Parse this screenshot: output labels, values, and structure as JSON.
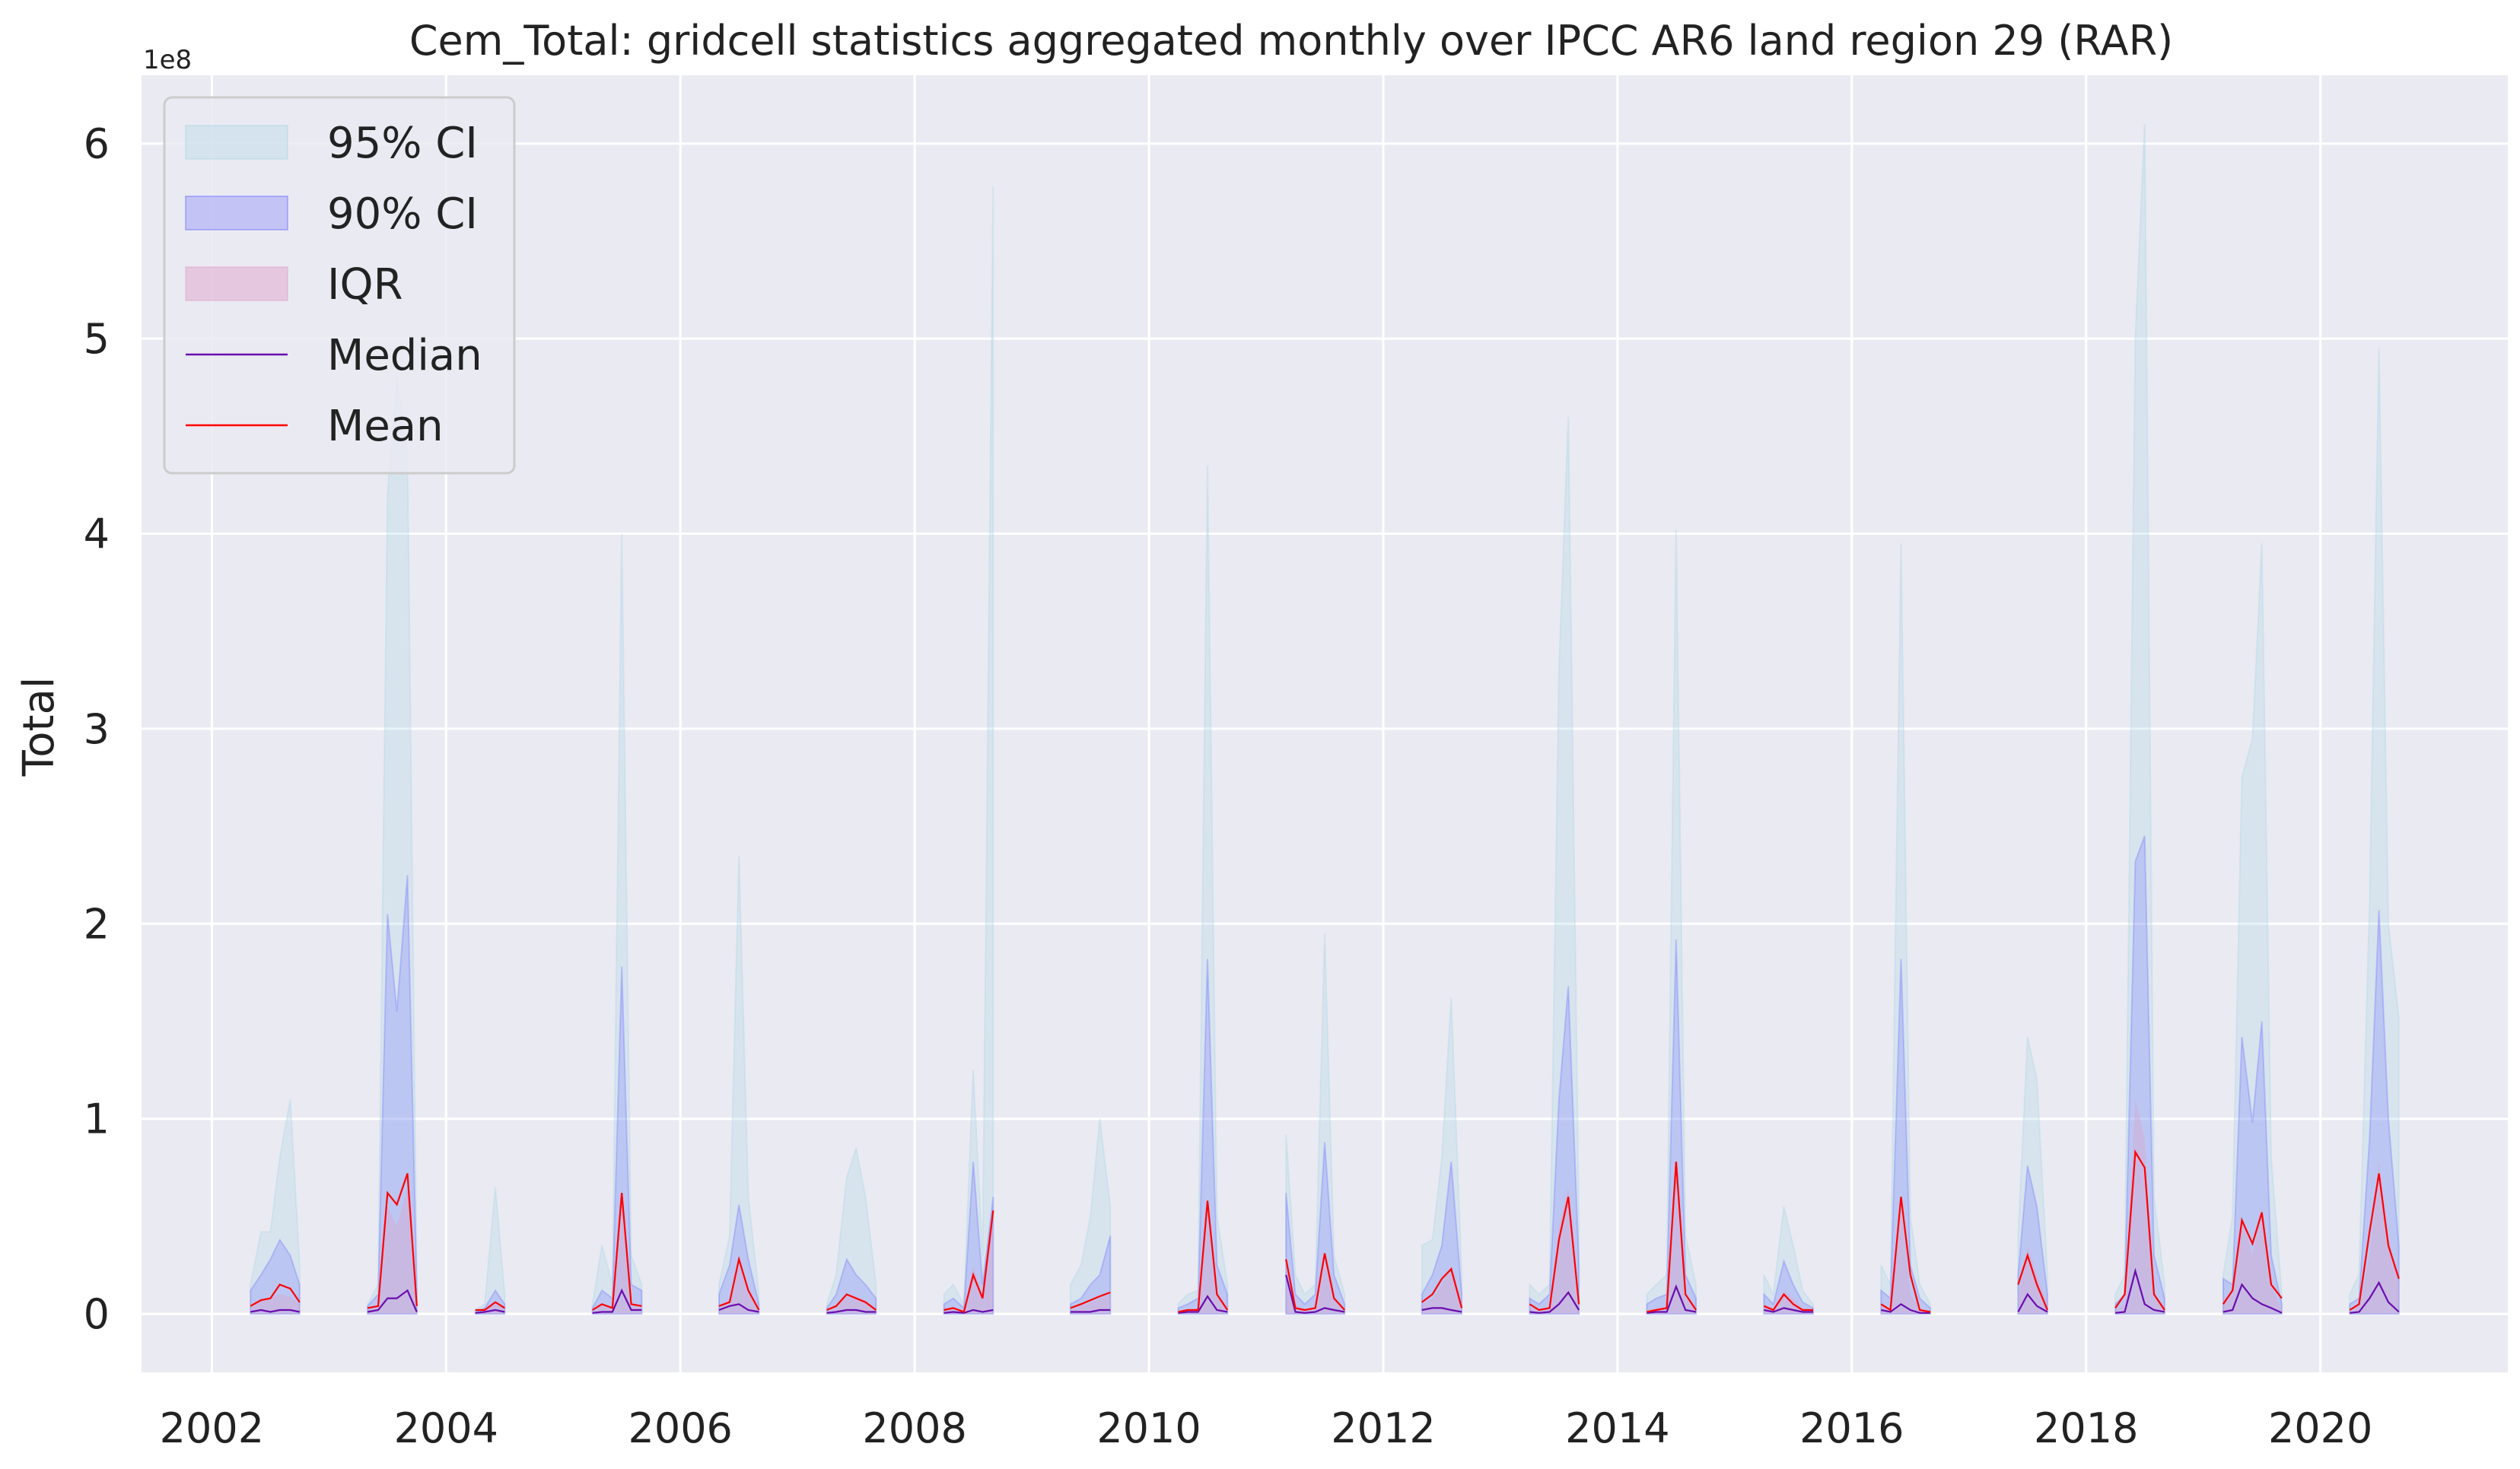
{
  "chart_data": {
    "type": "area",
    "title": "Cem_Total: gridcell statistics aggregated monthly over IPCC AR6 land region 29 (RAR)",
    "xlabel": "",
    "ylabel": "Total",
    "y_offset_label": "1e8",
    "y_scale_multiplier": 100000000,
    "xlim": [
      2001.4,
      2021.6
    ],
    "ylim": [
      -0.3,
      6.35
    ],
    "x_ticks": [
      2002,
      2004,
      2006,
      2008,
      2010,
      2012,
      2014,
      2016,
      2018,
      2020
    ],
    "x_tick_labels": [
      "2002",
      "2004",
      "2006",
      "2008",
      "2010",
      "2012",
      "2014",
      "2016",
      "2018",
      "2020"
    ],
    "y_ticks": [
      0,
      1,
      2,
      3,
      4,
      5,
      6
    ],
    "y_tick_labels": [
      "0",
      "1",
      "2",
      "3",
      "4",
      "5",
      "6"
    ],
    "grid": true,
    "legend_position": "top-left",
    "colors": {
      "plot_background": "#eaeaf2",
      "grid": "#ffffff",
      "ci95": "#add8e6",
      "ci90": "#6a6aff",
      "iqr": "#e0a0c8",
      "median": "#6a0dad",
      "mean": "#ff0000"
    },
    "legend": [
      {
        "label": "95% CI",
        "kind": "fill",
        "key": "ci95"
      },
      {
        "label": "90% CI",
        "kind": "fill",
        "key": "ci90"
      },
      {
        "label": "IQR",
        "kind": "fill",
        "key": "iqr"
      },
      {
        "label": "Median",
        "kind": "line",
        "key": "median"
      },
      {
        "label": "Mean",
        "kind": "line",
        "key": "mean"
      }
    ],
    "segments": [
      {
        "x": [
          2002.33,
          2002.42,
          2002.5,
          2002.58,
          2002.67,
          2002.75
        ],
        "ci95": [
          0.15,
          0.42,
          0.42,
          0.8,
          1.1,
          0.25
        ],
        "ci90": [
          0.12,
          0.2,
          0.28,
          0.38,
          0.3,
          0.15
        ],
        "iqr_hi": [
          0.05,
          0.07,
          0.08,
          0.1,
          0.09,
          0.05
        ],
        "iqr_lo": [
          0.0,
          0.0,
          0.0,
          0.0,
          0.0,
          0.0
        ],
        "median": [
          0.01,
          0.02,
          0.01,
          0.02,
          0.02,
          0.01
        ],
        "mean": [
          0.04,
          0.07,
          0.08,
          0.15,
          0.13,
          0.06
        ]
      },
      {
        "x": [
          2003.33,
          2003.42,
          2003.5,
          2003.58,
          2003.67,
          2003.75
        ],
        "ci95": [
          0.05,
          0.15,
          4.2,
          4.8,
          4.4,
          0.2
        ],
        "ci90": [
          0.04,
          0.1,
          2.05,
          1.55,
          2.25,
          0.12
        ],
        "iqr_hi": [
          0.02,
          0.05,
          0.55,
          0.45,
          0.65,
          0.04
        ],
        "iqr_lo": [
          0.0,
          0.0,
          0.0,
          0.0,
          0.0,
          0.0
        ],
        "median": [
          0.01,
          0.02,
          0.08,
          0.08,
          0.12,
          0.01
        ],
        "mean": [
          0.03,
          0.04,
          0.62,
          0.56,
          0.72,
          0.04
        ]
      },
      {
        "x": [
          2004.25,
          2004.33,
          2004.42,
          2004.5
        ],
        "ci95": [
          0.02,
          0.05,
          0.65,
          0.1
        ],
        "ci90": [
          0.01,
          0.03,
          0.12,
          0.05
        ],
        "iqr_hi": [
          0.01,
          0.02,
          0.05,
          0.02
        ],
        "iqr_lo": [
          0.0,
          0.0,
          0.0,
          0.0
        ],
        "median": [
          0.005,
          0.01,
          0.02,
          0.01
        ],
        "mean": [
          0.02,
          0.02,
          0.06,
          0.03
        ]
      },
      {
        "x": [
          2005.25,
          2005.33,
          2005.42,
          2005.5,
          2005.58,
          2005.67
        ],
        "ci95": [
          0.05,
          0.35,
          0.15,
          4.0,
          0.3,
          0.15
        ],
        "ci90": [
          0.03,
          0.12,
          0.08,
          1.78,
          0.15,
          0.12
        ],
        "iqr_hi": [
          0.01,
          0.05,
          0.03,
          0.6,
          0.05,
          0.04
        ],
        "iqr_lo": [
          0.0,
          0.0,
          0.0,
          0.0,
          0.0,
          0.0
        ],
        "median": [
          0.005,
          0.01,
          0.01,
          0.12,
          0.02,
          0.02
        ],
        "mean": [
          0.02,
          0.05,
          0.03,
          0.62,
          0.05,
          0.04
        ]
      },
      {
        "x": [
          2006.33,
          2006.42,
          2006.5,
          2006.58,
          2006.67
        ],
        "ci95": [
          0.15,
          0.4,
          2.35,
          0.6,
          0.1
        ],
        "ci90": [
          0.1,
          0.25,
          0.56,
          0.28,
          0.05
        ],
        "iqr_hi": [
          0.04,
          0.08,
          0.25,
          0.12,
          0.02
        ],
        "iqr_lo": [
          0.0,
          0.0,
          0.0,
          0.0,
          0.0
        ],
        "median": [
          0.02,
          0.04,
          0.05,
          0.02,
          0.01
        ],
        "mean": [
          0.04,
          0.06,
          0.28,
          0.12,
          0.02
        ]
      },
      {
        "x": [
          2007.25,
          2007.33,
          2007.42,
          2007.5,
          2007.58,
          2007.67
        ],
        "ci95": [
          0.05,
          0.2,
          0.7,
          0.85,
          0.6,
          0.15
        ],
        "ci90": [
          0.03,
          0.1,
          0.28,
          0.2,
          0.15,
          0.08
        ],
        "iqr_hi": [
          0.01,
          0.05,
          0.1,
          0.09,
          0.07,
          0.03
        ],
        "iqr_lo": [
          0.0,
          0.0,
          0.0,
          0.0,
          0.0,
          0.0
        ],
        "median": [
          0.005,
          0.01,
          0.02,
          0.02,
          0.01,
          0.01
        ],
        "mean": [
          0.02,
          0.04,
          0.1,
          0.08,
          0.06,
          0.02
        ]
      },
      {
        "x": [
          2008.25,
          2008.33,
          2008.42,
          2008.5,
          2008.58,
          2008.67
        ],
        "ci95": [
          0.1,
          0.15,
          0.05,
          1.25,
          0.3,
          5.78
        ],
        "ci90": [
          0.05,
          0.08,
          0.03,
          0.78,
          0.15,
          0.6
        ],
        "iqr_hi": [
          0.02,
          0.03,
          0.01,
          0.25,
          0.08,
          0.5
        ],
        "iqr_lo": [
          0.0,
          0.0,
          0.0,
          0.0,
          0.0,
          0.0
        ],
        "median": [
          0.005,
          0.01,
          0.005,
          0.02,
          0.01,
          0.02
        ],
        "mean": [
          0.02,
          0.03,
          0.01,
          0.2,
          0.08,
          0.53
        ]
      },
      {
        "x": [
          2009.33,
          2009.42,
          2009.5,
          2009.58,
          2009.67
        ],
        "ci95": [
          0.15,
          0.25,
          0.5,
          1.0,
          0.55
        ],
        "ci90": [
          0.05,
          0.08,
          0.15,
          0.2,
          0.4
        ],
        "iqr_hi": [
          0.02,
          0.04,
          0.06,
          0.08,
          0.1
        ],
        "iqr_lo": [
          0.0,
          0.0,
          0.0,
          0.0,
          0.0
        ],
        "median": [
          0.01,
          0.01,
          0.01,
          0.02,
          0.02
        ],
        "mean": [
          0.03,
          0.05,
          0.07,
          0.09,
          0.11
        ]
      },
      {
        "x": [
          2010.25,
          2010.33,
          2010.42,
          2010.5,
          2010.58,
          2010.67
        ],
        "ci95": [
          0.05,
          0.1,
          0.12,
          4.35,
          0.5,
          0.15
        ],
        "ci90": [
          0.03,
          0.05,
          0.08,
          1.82,
          0.25,
          0.1
        ],
        "iqr_hi": [
          0.01,
          0.02,
          0.03,
          0.55,
          0.1,
          0.04
        ],
        "iqr_lo": [
          0.0,
          0.0,
          0.0,
          0.0,
          0.0,
          0.0
        ],
        "median": [
          0.005,
          0.01,
          0.01,
          0.09,
          0.02,
          0.01
        ],
        "mean": [
          0.01,
          0.02,
          0.02,
          0.58,
          0.1,
          0.02
        ]
      },
      {
        "x": [
          2011.17,
          2011.25,
          2011.33,
          2011.42,
          2011.5,
          2011.58,
          2011.67
        ],
        "ci95": [
          0.92,
          0.2,
          0.1,
          0.15,
          1.95,
          0.3,
          0.1
        ],
        "ci90": [
          0.62,
          0.1,
          0.05,
          0.1,
          0.88,
          0.2,
          0.05
        ],
        "iqr_hi": [
          0.3,
          0.05,
          0.02,
          0.04,
          0.3,
          0.08,
          0.02
        ],
        "iqr_lo": [
          0.0,
          0.0,
          0.0,
          0.0,
          0.0,
          0.0,
          0.0
        ],
        "median": [
          0.2,
          0.01,
          0.005,
          0.01,
          0.03,
          0.02,
          0.01
        ],
        "mean": [
          0.28,
          0.03,
          0.02,
          0.03,
          0.31,
          0.08,
          0.02
        ]
      },
      {
        "x": [
          2012.33,
          2012.42,
          2012.5,
          2012.58,
          2012.67
        ],
        "ci95": [
          0.35,
          0.38,
          0.8,
          1.62,
          0.2
        ],
        "ci90": [
          0.1,
          0.2,
          0.35,
          0.78,
          0.1
        ],
        "iqr_hi": [
          0.05,
          0.08,
          0.15,
          0.25,
          0.05
        ],
        "iqr_lo": [
          0.0,
          0.0,
          0.0,
          0.0,
          0.0
        ],
        "median": [
          0.02,
          0.03,
          0.03,
          0.02,
          0.01
        ],
        "mean": [
          0.06,
          0.1,
          0.18,
          0.23,
          0.03
        ]
      },
      {
        "x": [
          2013.25,
          2013.33,
          2013.42,
          2013.5,
          2013.58,
          2013.67
        ],
        "ci95": [
          0.15,
          0.1,
          0.15,
          3.3,
          4.6,
          0.5
        ],
        "ci90": [
          0.08,
          0.05,
          0.1,
          1.1,
          1.68,
          0.25
        ],
        "iqr_hi": [
          0.03,
          0.02,
          0.04,
          0.45,
          0.65,
          0.1
        ],
        "iqr_lo": [
          0.0,
          0.0,
          0.0,
          0.0,
          0.0,
          0.0
        ],
        "median": [
          0.01,
          0.005,
          0.01,
          0.05,
          0.11,
          0.02
        ],
        "mean": [
          0.05,
          0.02,
          0.03,
          0.38,
          0.6,
          0.05
        ]
      },
      {
        "x": [
          2014.25,
          2014.33,
          2014.42,
          2014.5,
          2014.58,
          2014.67
        ],
        "ci95": [
          0.1,
          0.15,
          0.2,
          4.02,
          0.4,
          0.15
        ],
        "ci90": [
          0.05,
          0.08,
          0.1,
          1.92,
          0.2,
          0.08
        ],
        "iqr_hi": [
          0.02,
          0.03,
          0.04,
          0.8,
          0.08,
          0.03
        ],
        "iqr_lo": [
          0.0,
          0.0,
          0.0,
          0.0,
          0.0,
          0.0
        ],
        "median": [
          0.005,
          0.01,
          0.01,
          0.14,
          0.02,
          0.01
        ],
        "mean": [
          0.01,
          0.02,
          0.03,
          0.78,
          0.1,
          0.02
        ]
      },
      {
        "x": [
          2015.25,
          2015.33,
          2015.42,
          2015.5,
          2015.58,
          2015.67
        ],
        "ci95": [
          0.2,
          0.1,
          0.55,
          0.35,
          0.12,
          0.05
        ],
        "ci90": [
          0.1,
          0.05,
          0.27,
          0.15,
          0.06,
          0.03
        ],
        "iqr_hi": [
          0.05,
          0.03,
          0.12,
          0.08,
          0.03,
          0.02
        ],
        "iqr_lo": [
          0.0,
          0.0,
          0.0,
          0.0,
          0.0,
          0.0
        ],
        "median": [
          0.02,
          0.01,
          0.03,
          0.02,
          0.01,
          0.01
        ],
        "mean": [
          0.04,
          0.02,
          0.1,
          0.05,
          0.02,
          0.02
        ]
      },
      {
        "x": [
          2016.25,
          2016.33,
          2016.42,
          2016.5,
          2016.58,
          2016.67
        ],
        "ci95": [
          0.25,
          0.15,
          3.95,
          0.5,
          0.15,
          0.05
        ],
        "ci90": [
          0.12,
          0.08,
          1.82,
          0.25,
          0.08,
          0.03
        ],
        "iqr_hi": [
          0.05,
          0.03,
          0.6,
          0.1,
          0.03,
          0.01
        ],
        "iqr_lo": [
          0.0,
          0.0,
          0.0,
          0.0,
          0.0,
          0.0
        ],
        "median": [
          0.02,
          0.01,
          0.05,
          0.02,
          0.005,
          0.005
        ],
        "mean": [
          0.05,
          0.02,
          0.6,
          0.2,
          0.02,
          0.01
        ]
      },
      {
        "x": [
          2017.42,
          2017.5,
          2017.58,
          2017.67
        ],
        "ci95": [
          0.4,
          1.42,
          1.2,
          0.2
        ],
        "ci90": [
          0.2,
          0.76,
          0.55,
          0.1
        ],
        "iqr_hi": [
          0.08,
          0.35,
          0.2,
          0.05
        ],
        "iqr_lo": [
          0.0,
          0.0,
          0.0,
          0.0
        ],
        "median": [
          0.01,
          0.1,
          0.04,
          0.01
        ],
        "mean": [
          0.15,
          0.3,
          0.15,
          0.02
        ]
      },
      {
        "x": [
          2018.25,
          2018.33,
          2018.42,
          2018.5,
          2018.58,
          2018.67
        ],
        "ci95": [
          0.1,
          0.2,
          5.0,
          6.1,
          0.6,
          0.15
        ],
        "ci90": [
          0.05,
          0.1,
          2.32,
          2.45,
          0.3,
          0.08
        ],
        "iqr_hi": [
          0.02,
          0.05,
          1.1,
          0.9,
          0.1,
          0.03
        ],
        "iqr_lo": [
          0.0,
          0.0,
          0.0,
          0.0,
          0.0,
          0.0
        ],
        "median": [
          0.005,
          0.01,
          0.22,
          0.05,
          0.02,
          0.01
        ],
        "mean": [
          0.03,
          0.1,
          0.83,
          0.75,
          0.1,
          0.02
        ]
      },
      {
        "x": [
          2019.17,
          2019.25,
          2019.33,
          2019.42,
          2019.5,
          2019.58,
          2019.67
        ],
        "ci95": [
          0.2,
          0.5,
          2.75,
          2.95,
          3.95,
          0.8,
          0.1
        ],
        "ci90": [
          0.18,
          0.15,
          1.42,
          0.98,
          1.5,
          0.3,
          0.05
        ],
        "iqr_hi": [
          0.08,
          0.1,
          0.5,
          0.3,
          0.55,
          0.15,
          0.02
        ],
        "iqr_lo": [
          0.0,
          0.0,
          0.0,
          0.0,
          0.0,
          0.0,
          0.0
        ],
        "median": [
          0.01,
          0.02,
          0.15,
          0.08,
          0.05,
          0.03,
          0.005
        ],
        "mean": [
          0.05,
          0.12,
          0.48,
          0.36,
          0.52,
          0.15,
          0.08
        ]
      },
      {
        "x": [
          2020.25,
          2020.33,
          2020.42,
          2020.5,
          2020.58,
          2020.67
        ],
        "ci95": [
          0.1,
          0.2,
          2.1,
          4.95,
          2.0,
          1.52
        ],
        "ci90": [
          0.05,
          0.08,
          0.9,
          2.07,
          1.0,
          0.35
        ],
        "iqr_hi": [
          0.02,
          0.04,
          0.3,
          0.78,
          0.4,
          0.15
        ],
        "iqr_lo": [
          0.0,
          0.0,
          0.0,
          0.0,
          0.0,
          0.0
        ],
        "median": [
          0.005,
          0.01,
          0.08,
          0.16,
          0.06,
          0.01
        ],
        "mean": [
          0.02,
          0.05,
          0.42,
          0.72,
          0.35,
          0.18
        ]
      }
    ]
  }
}
